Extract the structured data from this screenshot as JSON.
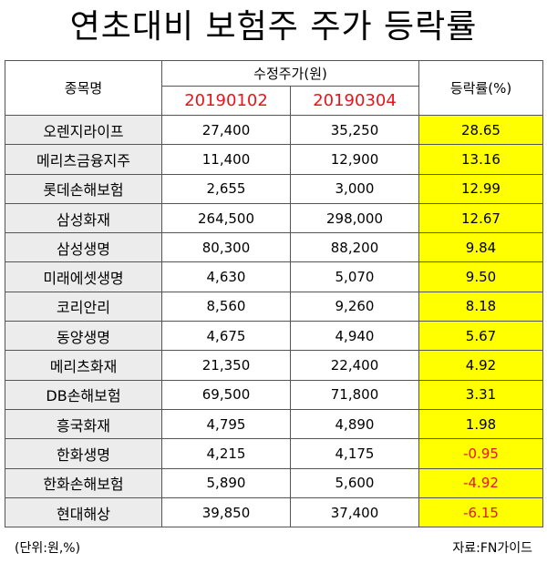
{
  "title": "연초대비 보험주 주가 등락률",
  "headers": {
    "company": "종목명",
    "adjusted_price": "수정주가(원)",
    "date_start": "20190102",
    "date_end": "20190304",
    "change_rate": "등락률(%)"
  },
  "rows": [
    {
      "name": "오렌지라이프",
      "start": "27,400",
      "end": "35,250",
      "rate": "28.65"
    },
    {
      "name": "메리츠금융지주",
      "start": "11,400",
      "end": "12,900",
      "rate": "13.16"
    },
    {
      "name": "롯데손해보험",
      "start": "2,655",
      "end": "3,000",
      "rate": "12.99"
    },
    {
      "name": "삼성화재",
      "start": "264,500",
      "end": "298,000",
      "rate": "12.67"
    },
    {
      "name": "삼성생명",
      "start": "80,300",
      "end": "88,200",
      "rate": "9.84"
    },
    {
      "name": "미래에셋생명",
      "start": "4,630",
      "end": "5,070",
      "rate": "9.50"
    },
    {
      "name": "코리안리",
      "start": "8,560",
      "end": "9,260",
      "rate": "8.18"
    },
    {
      "name": "동양생명",
      "start": "4,675",
      "end": "4,940",
      "rate": "5.67"
    },
    {
      "name": "메리츠화재",
      "start": "21,350",
      "end": "22,400",
      "rate": "4.92"
    },
    {
      "name": "DB손해보험",
      "start": "69,500",
      "end": "71,800",
      "rate": "3.31"
    },
    {
      "name": "흥국화재",
      "start": "4,795",
      "end": "4,890",
      "rate": "1.98"
    },
    {
      "name": "한화생명",
      "start": "4,215",
      "end": "4,175",
      "rate": "-0.95"
    },
    {
      "name": "한화손해보험",
      "start": "5,890",
      "end": "5,600",
      "rate": "-4.92"
    },
    {
      "name": "현대해상",
      "start": "39,850",
      "end": "37,400",
      "rate": "-6.15"
    }
  ],
  "footer": {
    "unit": "(단위:원,%)",
    "source": "자료:FN가이드"
  },
  "colors": {
    "highlight": "#ffff00",
    "name_cell": "#ececec",
    "negative_text": "#e8141b",
    "date_text": "#e8141b"
  }
}
